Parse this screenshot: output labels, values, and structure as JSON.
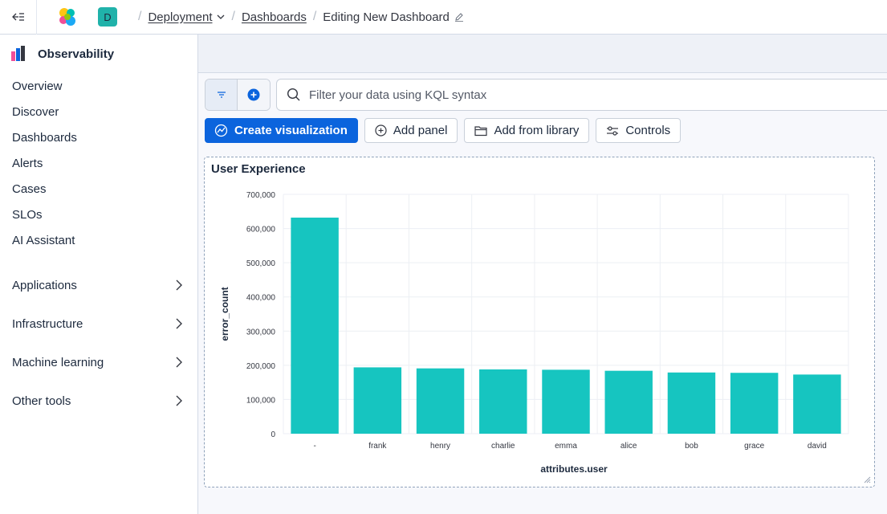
{
  "header": {
    "space_initial": "D",
    "breadcrumbs": [
      {
        "label": "Deployment"
      },
      {
        "label": "Dashboards"
      },
      {
        "label": "Editing New Dashboard"
      }
    ]
  },
  "sidebar": {
    "title": "Observability",
    "items": [
      "Overview",
      "Discover",
      "Dashboards",
      "Alerts",
      "Cases",
      "SLOs",
      "AI Assistant"
    ],
    "groups": [
      "Applications",
      "Infrastructure",
      "Machine learning",
      "Other tools"
    ]
  },
  "query": {
    "placeholder": "Filter your data using KQL syntax"
  },
  "toolbar": {
    "create_label": "Create visualization",
    "add_panel_label": "Add panel",
    "add_library_label": "Add from library",
    "controls_label": "Controls"
  },
  "colors": {
    "bar": "#16c5c0",
    "primary": "#0b64dd"
  },
  "panel": {
    "title": "User Experience"
  },
  "chart_data": {
    "type": "bar",
    "categories": [
      "-",
      "frank",
      "henry",
      "charlie",
      "emma",
      "alice",
      "bob",
      "grace",
      "david"
    ],
    "values": [
      632000,
      194000,
      191000,
      188000,
      187000,
      184000,
      179000,
      178000,
      173000
    ],
    "xlabel": "attributes.user",
    "ylabel": "error_count",
    "ylim": [
      0,
      700000
    ],
    "yticks": [
      0,
      100000,
      200000,
      300000,
      400000,
      500000,
      600000,
      700000
    ],
    "ytick_labels": [
      "0",
      "100,000",
      "200,000",
      "300,000",
      "400,000",
      "500,000",
      "600,000",
      "700,000"
    ],
    "grid": true
  }
}
